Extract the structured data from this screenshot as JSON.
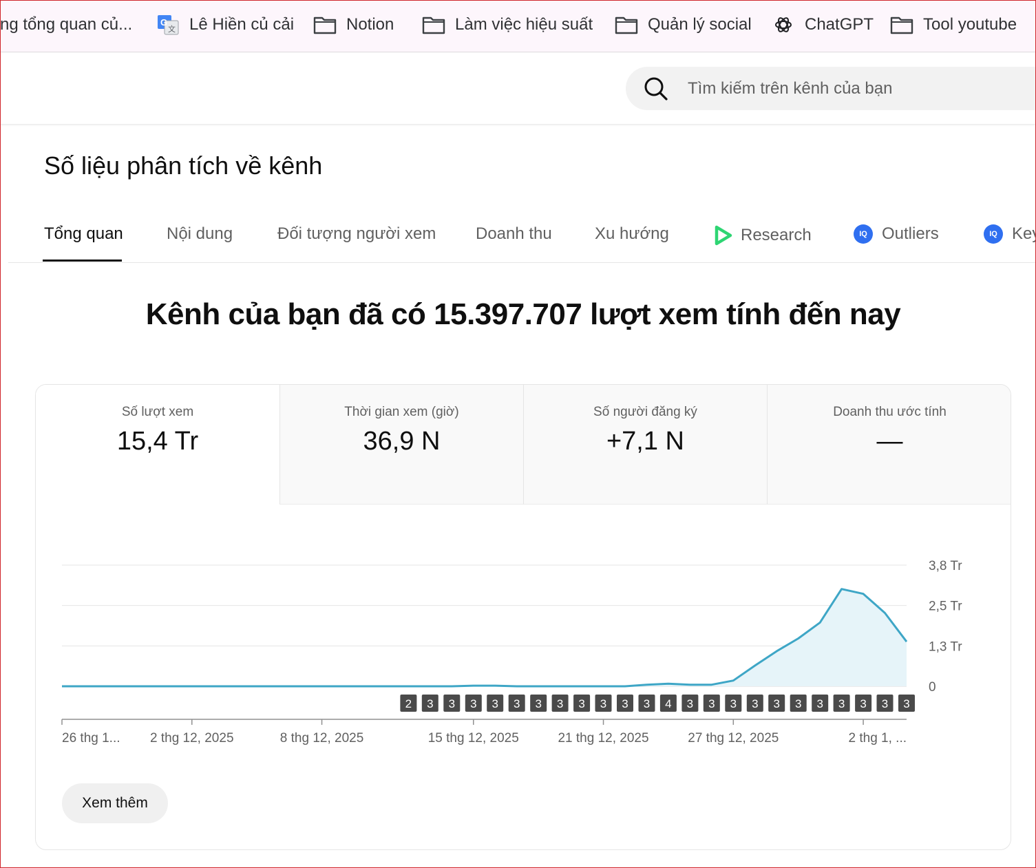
{
  "bookmarks": [
    {
      "label": "ng tổng quan củ...",
      "icon": "none"
    },
    {
      "label": "Lê Hiền củ cải",
      "icon": "google-translate-icon"
    },
    {
      "label": "Notion",
      "icon": "folder-icon"
    },
    {
      "label": "Làm việc hiệu suất",
      "icon": "folder-icon"
    },
    {
      "label": "Quản lý social",
      "icon": "folder-icon"
    },
    {
      "label": "ChatGPT",
      "icon": "chatgpt-icon"
    },
    {
      "label": "Tool youtube",
      "icon": "folder-icon"
    }
  ],
  "search": {
    "placeholder": "Tìm kiếm trên kênh của bạn"
  },
  "page": {
    "title": "Số liệu phân tích về kênh"
  },
  "tabs": [
    {
      "label": "Tổng quan",
      "active": true
    },
    {
      "label": "Nội dung"
    },
    {
      "label": "Đối tượng người xem"
    },
    {
      "label": "Doanh thu"
    },
    {
      "label": "Xu hướng"
    },
    {
      "label": "Research",
      "icon": "research-play-icon"
    },
    {
      "label": "Outliers",
      "icon": "vidiq-icon"
    },
    {
      "label": "Key",
      "icon": "vidiq-icon"
    }
  ],
  "headline": "Kênh của bạn đã có 15.397.707 lượt xem tính đến nay",
  "metrics": [
    {
      "label": "Số lượt xem",
      "value": "15,4 Tr"
    },
    {
      "label": "Thời gian xem (giờ)",
      "value": "36,9 N"
    },
    {
      "label": "Số người đăng ký",
      "value": "+7,1 N"
    },
    {
      "label": "Doanh thu ước tính",
      "value": "—"
    }
  ],
  "colors": {
    "line": "#3ea6c6",
    "area": "#e6f4f9",
    "accent": "#0f0f0f",
    "badge": "#4a4a4a"
  },
  "chart_data": {
    "type": "area",
    "series": [
      {
        "values": [
          0,
          0,
          0,
          0,
          0,
          0,
          0,
          0,
          0,
          0,
          0,
          0,
          0,
          0,
          0,
          0,
          0,
          0,
          0,
          0.02,
          0.02,
          0,
          0,
          0,
          0,
          0,
          0,
          0.05,
          0.08,
          0.05,
          0.05,
          0.18,
          0.65,
          1.1,
          1.5,
          2.0,
          3.05,
          2.9,
          2.3,
          1.4
        ]
      }
    ],
    "x_tick_labels": [
      "26 thg 1...",
      "2 thg 12, 2025",
      "8 thg 12, 2025",
      "15 thg 12, 2025",
      "21 thg 12, 2025",
      "27 thg 12, 2025",
      "2 thg 1, ..."
    ],
    "y_tick_labels": [
      "0",
      "1,3 Tr",
      "2,5 Tr",
      "3,8 Tr"
    ],
    "ylim": [
      0,
      3.8
    ],
    "y_unit": "Tr",
    "badges": [
      "2",
      "3",
      "3",
      "3",
      "3",
      "3",
      "3",
      "3",
      "3",
      "3",
      "3",
      "3",
      "4",
      "3",
      "3",
      "3",
      "3",
      "3",
      "3",
      "3",
      "3",
      "3",
      "3",
      "3"
    ],
    "grid": true
  },
  "buttons": {
    "more": "Xem thêm"
  }
}
